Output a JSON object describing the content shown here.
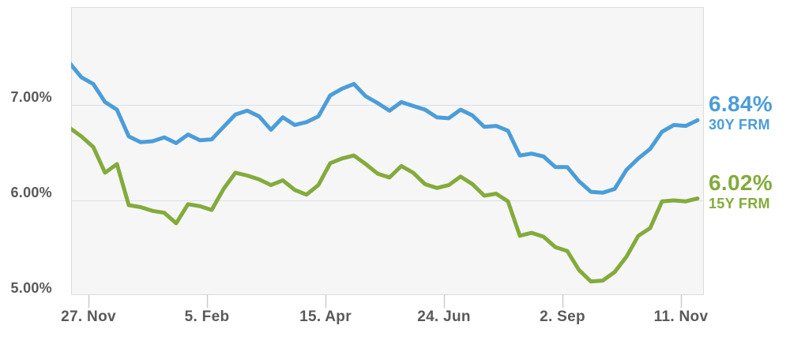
{
  "chart_data": {
    "type": "line",
    "x_dates": [
      "2023-11-16",
      "2023-11-23",
      "2023-11-30",
      "2023-12-07",
      "2023-12-14",
      "2023-12-21",
      "2023-12-28",
      "2024-01-04",
      "2024-01-11",
      "2024-01-18",
      "2024-01-25",
      "2024-02-01",
      "2024-02-08",
      "2024-02-15",
      "2024-02-22",
      "2024-02-29",
      "2024-03-07",
      "2024-03-14",
      "2024-03-21",
      "2024-03-28",
      "2024-04-04",
      "2024-04-11",
      "2024-04-18",
      "2024-04-25",
      "2024-05-02",
      "2024-05-09",
      "2024-05-16",
      "2024-05-23",
      "2024-05-30",
      "2024-06-06",
      "2024-06-13",
      "2024-06-20",
      "2024-06-27",
      "2024-07-04",
      "2024-07-11",
      "2024-07-18",
      "2024-07-25",
      "2024-08-01",
      "2024-08-08",
      "2024-08-15",
      "2024-08-22",
      "2024-08-29",
      "2024-09-05",
      "2024-09-12",
      "2024-09-19",
      "2024-09-26",
      "2024-10-03",
      "2024-10-10",
      "2024-10-17",
      "2024-10-24",
      "2024-10-31",
      "2024-11-07",
      "2024-11-14",
      "2024-11-21"
    ],
    "series": [
      {
        "name": "30Y FRM",
        "end_label": "6.84%",
        "color": "#4b9dd9",
        "values": [
          7.44,
          7.29,
          7.22,
          7.03,
          6.95,
          6.67,
          6.61,
          6.62,
          6.66,
          6.6,
          6.69,
          6.63,
          6.64,
          6.77,
          6.9,
          6.94,
          6.88,
          6.74,
          6.87,
          6.79,
          6.82,
          6.88,
          7.1,
          7.17,
          7.22,
          7.09,
          7.02,
          6.94,
          7.03,
          6.99,
          6.95,
          6.87,
          6.86,
          6.95,
          6.89,
          6.77,
          6.78,
          6.73,
          6.47,
          6.49,
          6.46,
          6.35,
          6.35,
          6.2,
          6.09,
          6.08,
          6.12,
          6.32,
          6.44,
          6.54,
          6.72,
          6.79,
          6.78,
          6.84
        ]
      },
      {
        "name": "15Y FRM",
        "end_label": "6.02%",
        "color": "#83ab3c",
        "values": [
          6.76,
          6.67,
          6.56,
          6.29,
          6.38,
          5.95,
          5.93,
          5.89,
          5.87,
          5.76,
          5.96,
          5.94,
          5.9,
          6.12,
          6.29,
          6.26,
          6.22,
          6.16,
          6.21,
          6.11,
          6.06,
          6.16,
          6.39,
          6.44,
          6.47,
          6.38,
          6.28,
          6.24,
          6.36,
          6.29,
          6.17,
          6.13,
          6.16,
          6.25,
          6.17,
          6.05,
          6.07,
          5.99,
          5.63,
          5.66,
          5.62,
          5.51,
          5.47,
          5.27,
          5.15,
          5.16,
          5.25,
          5.41,
          5.63,
          5.71,
          5.99,
          6.0,
          5.99,
          6.02
        ]
      }
    ],
    "ytick_labels": [
      "7.00%",
      "6.00%",
      "5.00%"
    ],
    "ytick_values": [
      7.0,
      6.0,
      5.0
    ],
    "ylim": [
      5.0,
      8.0
    ],
    "xtick_labels": [
      "27. Nov",
      "5. Feb",
      "15. Apr",
      "24. Jun",
      "2. Sep",
      "11. Nov"
    ],
    "xtick_week_positions": [
      1.57,
      11.57,
      21.57,
      31.57,
      41.57,
      51.57
    ],
    "grid": "horizontal gridlines at 7.00% and 6.00%, plot area bordered",
    "legend_position": "right of plot: colored value over series name"
  },
  "colors": {
    "blue": "#4b9dd9",
    "green": "#83ab3c",
    "axis_text": "#58595b",
    "plot_bg": "#f6f6f7",
    "plot_border": "#dbdcde",
    "gridline": "#dddee0",
    "tick": "#cbccce",
    "page_bg": "#ffffff"
  }
}
